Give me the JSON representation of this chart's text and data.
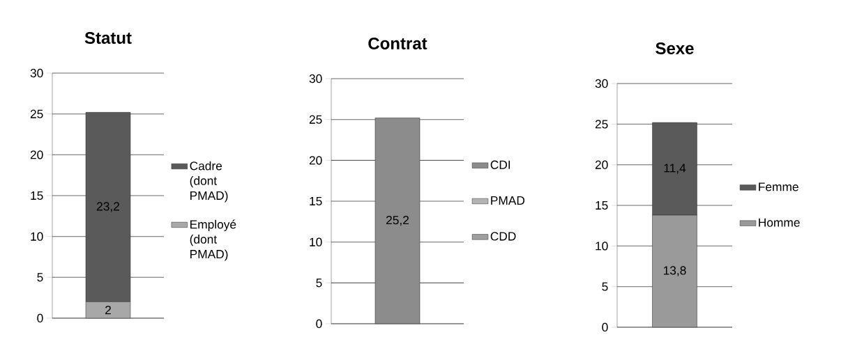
{
  "chart_data": [
    {
      "type": "bar",
      "title": "Statut",
      "stacked": true,
      "categories": [
        null
      ],
      "ylim": [
        0,
        30
      ],
      "yticks": [
        0,
        5,
        10,
        15,
        20,
        25,
        30
      ],
      "grid": "y",
      "legend": "right",
      "series": [
        {
          "name": "Employé (dont PMAD)",
          "color": "#a8a8a8",
          "values": [
            2
          ],
          "value_labels": [
            "2"
          ]
        },
        {
          "name": "Cadre (dont PMAD)",
          "color": "#5a5a5a",
          "values": [
            23.2
          ],
          "value_labels": [
            "23,2"
          ]
        }
      ]
    },
    {
      "type": "bar",
      "title": "Contrat",
      "stacked": true,
      "categories": [
        null
      ],
      "ylim": [
        0,
        30
      ],
      "yticks": [
        0,
        5,
        10,
        15,
        20,
        25,
        30
      ],
      "grid": "y",
      "legend": "right",
      "series": [
        {
          "name": "CDD",
          "color": "#a0a0a0",
          "values": [
            null
          ]
        },
        {
          "name": "PMAD",
          "color": "#b4b4b4",
          "values": [
            null
          ]
        },
        {
          "name": "CDI",
          "color": "#8c8c8c",
          "values": [
            25.2
          ],
          "value_labels": [
            "25,2"
          ]
        }
      ]
    },
    {
      "type": "bar",
      "title": "Sexe",
      "stacked": true,
      "categories": [
        null
      ],
      "ylim": [
        0,
        30
      ],
      "yticks": [
        0,
        5,
        10,
        15,
        20,
        25,
        30
      ],
      "grid": "y",
      "legend": "right",
      "series": [
        {
          "name": "Homme",
          "color": "#9a9a9a",
          "values": [
            13.8
          ],
          "value_labels": [
            "13,8"
          ]
        },
        {
          "name": "Femme",
          "color": "#5a5a5a",
          "values": [
            11.4
          ],
          "value_labels": [
            "11,4"
          ]
        }
      ]
    }
  ]
}
